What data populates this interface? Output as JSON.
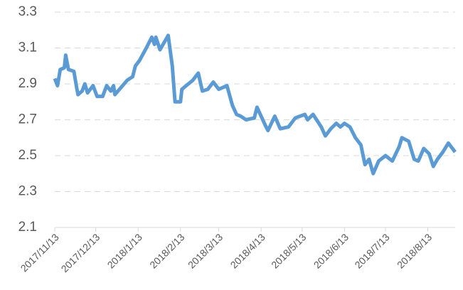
{
  "chart_data": {
    "type": "line",
    "x": [
      "2017/11/13",
      "2017/11/15",
      "2017/11/17",
      "2017/11/20",
      "2017/11/21",
      "2017/11/23",
      "2017/11/27",
      "2017/11/29",
      "2017/11/30",
      "2017/12/3",
      "2017/12/5",
      "2017/12/7",
      "2017/12/11",
      "2017/12/14",
      "2017/12/18",
      "2017/12/21",
      "2017/12/24",
      "2017/12/26",
      "2017/12/27",
      "2018/1/5",
      "2018/1/9",
      "2018/1/11",
      "2018/1/14",
      "2018/1/19",
      "2018/1/23",
      "2018/1/25",
      "2018/1/26",
      "2018/1/29",
      "2018/2/4",
      "2018/2/7",
      "2018/2/9",
      "2018/2/13",
      "2018/2/14",
      "2018/2/22",
      "2018/2/26",
      "2018/3/1",
      "2018/3/5",
      "2018/3/9",
      "2018/3/13",
      "2018/3/19",
      "2018/3/23",
      "2018/3/26",
      "2018/3/29",
      "2018/4/2",
      "2018/4/8",
      "2018/4/10",
      "2018/4/16",
      "2018/4/18",
      "2018/4/23",
      "2018/4/27",
      "2018/5/3",
      "2018/5/8",
      "2018/5/15",
      "2018/5/17",
      "2018/5/21",
      "2018/5/27",
      "2018/5/30",
      "2018/6/3",
      "2018/6/7",
      "2018/6/10",
      "2018/6/13",
      "2018/6/17",
      "2018/6/21",
      "2018/6/25",
      "2018/6/28",
      "2018/7/1",
      "2018/7/4",
      "2018/7/8",
      "2018/7/13",
      "2018/7/18",
      "2018/7/23",
      "2018/7/25",
      "2018/7/30",
      "2018/8/3",
      "2018/8/6",
      "2018/8/10",
      "2018/8/14",
      "2018/8/17",
      "2018/8/20",
      "2018/8/24",
      "2018/8/28",
      "2018/8/31",
      "2018/9/2"
    ],
    "series": [
      {
        "color": "#5b9bd5",
        "values": [
          2.93,
          2.89,
          2.98,
          2.99,
          3.06,
          2.98,
          2.97,
          2.88,
          2.84,
          2.86,
          2.9,
          2.85,
          2.89,
          2.83,
          2.83,
          2.89,
          2.86,
          2.89,
          2.84,
          2.92,
          2.94,
          3.0,
          3.03,
          3.1,
          3.16,
          3.12,
          3.16,
          3.09,
          3.17,
          3.0,
          2.8,
          2.8,
          2.87,
          2.92,
          2.96,
          2.86,
          2.87,
          2.91,
          2.87,
          2.89,
          2.78,
          2.73,
          2.72,
          2.7,
          2.71,
          2.77,
          2.67,
          2.64,
          2.72,
          2.65,
          2.66,
          2.71,
          2.73,
          2.7,
          2.73,
          2.66,
          2.61,
          2.65,
          2.68,
          2.66,
          2.68,
          2.66,
          2.6,
          2.56,
          2.45,
          2.48,
          2.4,
          2.47,
          2.5,
          2.47,
          2.55,
          2.6,
          2.58,
          2.48,
          2.47,
          2.54,
          2.51,
          2.44,
          2.48,
          2.52,
          2.57,
          2.54,
          2.52
        ]
      }
    ],
    "xlim": [
      "2017/11/13",
      "2018/9/2"
    ],
    "xticks": [
      "2017/11/13",
      "2017/12/13",
      "2018/1/13",
      "2018/2/13",
      "2018/3/13",
      "2018/4/13",
      "2018/5/13",
      "2018/6/13",
      "2018/7/13",
      "2018/8/13"
    ],
    "ylim": [
      2.1,
      3.3
    ],
    "yticks": [
      2.1,
      2.3,
      2.5,
      2.7,
      2.9,
      3.1,
      3.3
    ],
    "grid": true
  }
}
